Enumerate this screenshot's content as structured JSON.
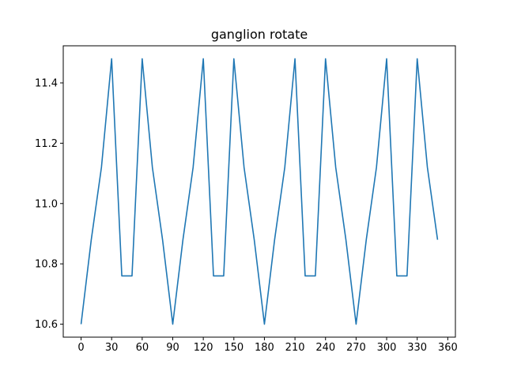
{
  "chart_data": {
    "type": "line",
    "title": "ganglion rotate",
    "xlabel": "",
    "ylabel": "",
    "xlim": [
      -17.5,
      367.5
    ],
    "ylim": [
      10.557,
      11.523
    ],
    "xticks": [
      0,
      30,
      60,
      90,
      120,
      150,
      180,
      210,
      240,
      270,
      300,
      330,
      360
    ],
    "xtick_labels": [
      "0",
      "30",
      "60",
      "90",
      "120",
      "150",
      "180",
      "210",
      "240",
      "270",
      "300",
      "330",
      "360"
    ],
    "yticks": [
      10.6,
      10.8,
      11.0,
      11.2,
      11.4
    ],
    "ytick_labels": [
      "10.6",
      "10.8",
      "11.0",
      "11.2",
      "11.4"
    ],
    "grid": false,
    "line_color": "#1f77b4",
    "series": [
      {
        "x": [
          0,
          10,
          20,
          30,
          40,
          50,
          60,
          70,
          80,
          90,
          100,
          110,
          120,
          130,
          140,
          150,
          160,
          170,
          180,
          190,
          200,
          210,
          220,
          230,
          240,
          250,
          260,
          270,
          280,
          290,
          300,
          310,
          320,
          330,
          340,
          350
        ],
        "y": [
          10.6,
          10.88,
          11.12,
          11.48,
          10.76,
          10.76,
          11.48,
          11.12,
          10.88,
          10.6,
          10.88,
          11.12,
          11.48,
          10.76,
          10.76,
          11.48,
          11.12,
          10.88,
          10.6,
          10.88,
          11.12,
          11.48,
          10.76,
          10.76,
          11.48,
          11.12,
          10.88,
          10.6,
          10.88,
          11.12,
          11.48,
          10.76,
          10.76,
          11.48,
          11.12,
          10.88
        ]
      }
    ]
  }
}
